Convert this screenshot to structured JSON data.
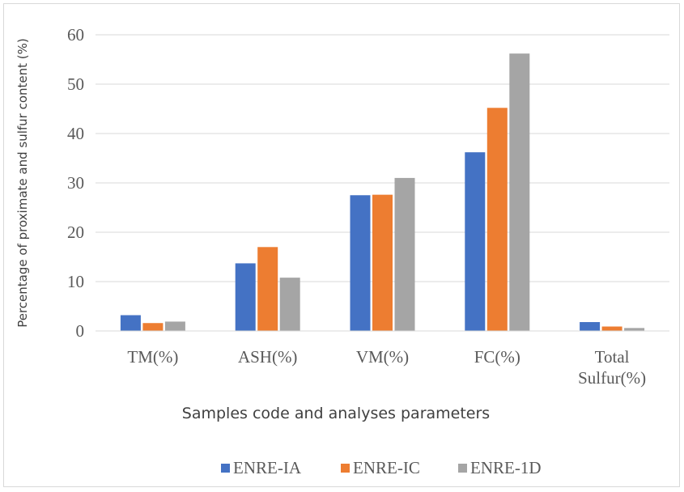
{
  "chart_data": {
    "type": "bar",
    "title": "",
    "ylabel": "Percentage of proximate and sulfur content (%)",
    "xlabel": "Samples code and analyses parameters",
    "ylim": [
      0,
      60
    ],
    "yticks": [
      0,
      10,
      20,
      30,
      40,
      50,
      60
    ],
    "grid": true,
    "legend_position": "bottom",
    "categories": [
      [
        "TM(%)"
      ],
      [
        "ASH(%)"
      ],
      [
        "VM(%)"
      ],
      [
        "FC(%)"
      ],
      [
        "Total",
        "Sulfur(%)"
      ]
    ],
    "series": [
      {
        "name": "ENRE-IA",
        "color": "#4472c4",
        "values": [
          3.2,
          13.7,
          27.5,
          36.2,
          1.8
        ]
      },
      {
        "name": "ENRE-IC",
        "color": "#ed7d31",
        "values": [
          1.6,
          17.0,
          27.6,
          45.2,
          0.9
        ]
      },
      {
        "name": "ENRE-1D",
        "color": "#a5a5a5",
        "values": [
          1.9,
          10.8,
          31.0,
          56.2,
          0.6
        ]
      }
    ]
  }
}
